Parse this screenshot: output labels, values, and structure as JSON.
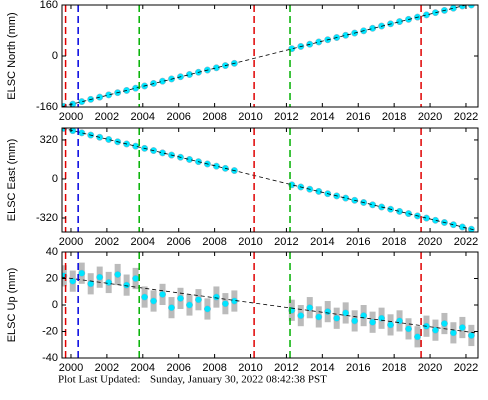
{
  "chart_data": [
    {
      "type": "scatter",
      "ylabel": "ELSC North (mm)",
      "xlim": [
        1999.5,
        2022.67
      ],
      "ylim": [
        -160,
        160
      ],
      "xticks": [
        2000,
        2002,
        2004,
        2006,
        2008,
        2010,
        2012,
        2014,
        2016,
        2018,
        2020,
        2022
      ],
      "yticks": [
        -160,
        0,
        160
      ],
      "color": "#00e5ff",
      "x": [
        1999.6,
        2000.1,
        2000.6,
        2001.1,
        2001.6,
        2002.1,
        2002.6,
        2003.1,
        2003.6,
        2004.1,
        2004.6,
        2005.1,
        2005.6,
        2006.1,
        2006.6,
        2007.1,
        2007.6,
        2008.1,
        2008.6,
        2009.1,
        2012.3,
        2012.8,
        2013.3,
        2013.8,
        2014.3,
        2014.8,
        2015.3,
        2015.8,
        2016.3,
        2016.8,
        2017.3,
        2017.8,
        2018.3,
        2018.8,
        2019.3,
        2019.8,
        2020.3,
        2020.8,
        2021.3,
        2021.8,
        2022.3
      ],
      "values": [
        -158,
        -151,
        -143,
        -136,
        -129,
        -122,
        -115,
        -108,
        -101,
        -94,
        -86,
        -79,
        -72,
        -65,
        -58,
        -51,
        -44,
        -37,
        -30,
        -23,
        23,
        30,
        37,
        44,
        51,
        58,
        65,
        72,
        79,
        87,
        94,
        101,
        108,
        115,
        122,
        129,
        136,
        143,
        150,
        157,
        160
      ],
      "model": {
        "x": [
          1999.5,
          2022.5
        ],
        "values": [
          -159,
          167
        ]
      },
      "vlines": [
        {
          "x": 1999.7,
          "color": "#e00000"
        },
        {
          "x": 2000.4,
          "color": "#0000e0"
        },
        {
          "x": 2003.8,
          "color": "#00b000"
        },
        {
          "x": 2010.2,
          "color": "#e00000"
        },
        {
          "x": 2012.2,
          "color": "#00b000"
        },
        {
          "x": 2019.5,
          "color": "#e00000"
        }
      ]
    },
    {
      "type": "scatter",
      "ylabel": "ELSC East (mm)",
      "xlim": [
        1999.5,
        2022.67
      ],
      "ylim": [
        -435,
        418
      ],
      "xticks": [
        2000,
        2002,
        2004,
        2006,
        2008,
        2010,
        2012,
        2014,
        2016,
        2018,
        2020,
        2022
      ],
      "yticks": [
        -320,
        0,
        320
      ],
      "color": "#00e5ff",
      "x": [
        1999.6,
        2000.1,
        2000.6,
        2001.1,
        2001.6,
        2002.1,
        2002.6,
        2003.1,
        2003.6,
        2004.1,
        2004.6,
        2005.1,
        2005.6,
        2006.1,
        2006.6,
        2007.1,
        2007.6,
        2008.1,
        2008.6,
        2009.1,
        2012.3,
        2012.8,
        2013.3,
        2013.8,
        2014.3,
        2014.8,
        2015.3,
        2015.8,
        2016.3,
        2016.8,
        2017.3,
        2017.8,
        2018.3,
        2018.8,
        2019.3,
        2019.8,
        2020.3,
        2020.8,
        2021.3,
        2021.8,
        2022.3
      ],
      "values": [
        415,
        396,
        378,
        360,
        342,
        324,
        305,
        287,
        269,
        251,
        233,
        214,
        196,
        178,
        160,
        142,
        123,
        105,
        87,
        69,
        -48,
        -66,
        -84,
        -102,
        -121,
        -139,
        -157,
        -175,
        -193,
        -212,
        -230,
        -248,
        -266,
        -284,
        -303,
        -321,
        -339,
        -357,
        -375,
        -394,
        -412
      ],
      "model": {
        "x": [
          1999.5,
          2022.5
        ],
        "values": [
          418,
          -419
        ]
      },
      "vlines": [
        {
          "x": 1999.7,
          "color": "#e00000"
        },
        {
          "x": 2000.4,
          "color": "#0000e0"
        },
        {
          "x": 2003.8,
          "color": "#00b000"
        },
        {
          "x": 2010.2,
          "color": "#e00000"
        },
        {
          "x": 2012.2,
          "color": "#00b000"
        },
        {
          "x": 2019.5,
          "color": "#e00000"
        }
      ]
    },
    {
      "type": "scatter",
      "ylabel": "ELSC Up (mm)",
      "xlim": [
        1999.5,
        2022.67
      ],
      "ylim": [
        -40,
        40
      ],
      "xticks": [
        2000,
        2002,
        2004,
        2006,
        2008,
        2010,
        2012,
        2014,
        2016,
        2018,
        2020,
        2022
      ],
      "yticks": [
        -40,
        -20,
        0,
        20,
        40
      ],
      "color": "#00e5ff",
      "error": 8,
      "x": [
        1999.6,
        2000.1,
        2000.6,
        2001.1,
        2001.6,
        2002.1,
        2002.6,
        2003.1,
        2003.6,
        2004.1,
        2004.6,
        2005.1,
        2005.6,
        2006.1,
        2006.6,
        2007.1,
        2007.6,
        2008.1,
        2008.6,
        2009.1,
        2012.3,
        2012.8,
        2013.3,
        2013.8,
        2014.3,
        2014.8,
        2015.3,
        2015.8,
        2016.3,
        2016.8,
        2017.3,
        2017.8,
        2018.3,
        2018.8,
        2019.3,
        2019.8,
        2020.3,
        2020.8,
        2021.3,
        2021.8,
        2022.3
      ],
      "values": [
        22,
        18,
        24,
        16,
        21,
        17,
        23,
        15,
        20,
        6,
        3,
        8,
        -2,
        5,
        0,
        4,
        -3,
        6,
        1,
        3,
        -4,
        -8,
        -2,
        -9,
        -5,
        -10,
        -6,
        -12,
        -8,
        -13,
        -10,
        -15,
        -12,
        -18,
        -24,
        -16,
        -19,
        -14,
        -21,
        -17,
        -23
      ],
      "model": {
        "x": [
          1999.5,
          2022.5
        ],
        "values": [
          21,
          -21
        ]
      },
      "vlines": [
        {
          "x": 1999.7,
          "color": "#e00000"
        },
        {
          "x": 2000.4,
          "color": "#0000e0"
        },
        {
          "x": 2003.8,
          "color": "#00b000"
        },
        {
          "x": 2010.2,
          "color": "#e00000"
        },
        {
          "x": 2012.2,
          "color": "#00b000"
        },
        {
          "x": 2019.5,
          "color": "#e00000"
        }
      ]
    }
  ],
  "footer": {
    "label": "Plot Last Updated:",
    "timestamp": "Sunday, January 30, 2022 08:42:38 PST"
  }
}
